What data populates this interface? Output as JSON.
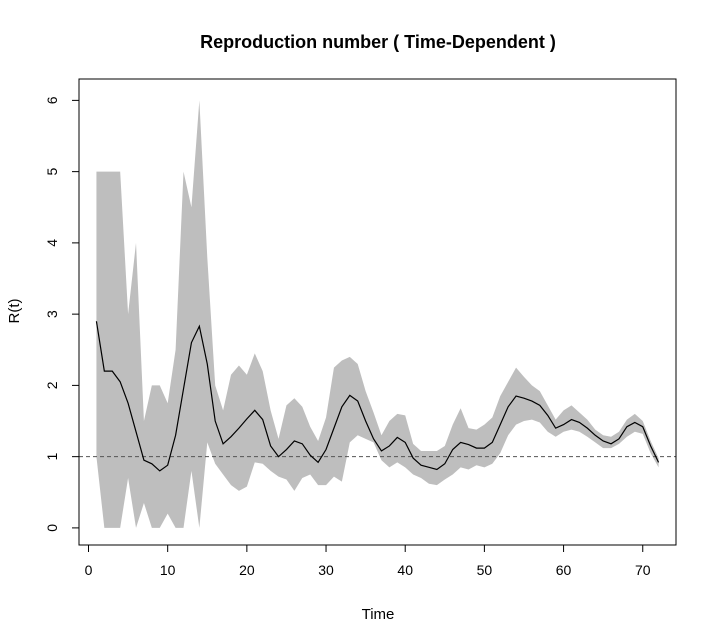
{
  "chart_data": {
    "type": "line",
    "title": "Reproduction number ( Time-Dependent )",
    "xlabel": "Time",
    "ylabel": "R(t)",
    "xlim": [
      -1.2,
      74.2
    ],
    "ylim": [
      -0.24,
      6.3
    ],
    "x_ticks": [
      0,
      10,
      20,
      30,
      40,
      50,
      60,
      70
    ],
    "y_ticks": [
      0,
      1,
      2,
      3,
      4,
      5,
      6
    ],
    "reference_line": {
      "y": 1,
      "style": "dashed",
      "color": "#555555"
    },
    "band_color": "#bebebe",
    "line_color": "#000000",
    "grid": false,
    "series": [
      {
        "x": [
          1,
          2,
          3,
          4,
          5,
          6,
          7,
          8,
          9,
          10,
          11,
          12,
          13,
          14,
          15,
          16,
          17,
          18,
          19,
          20,
          21,
          22,
          23,
          24,
          25,
          26,
          27,
          28,
          29,
          30,
          31,
          32,
          33,
          34,
          35,
          36,
          37,
          38,
          39,
          40,
          41,
          42,
          43,
          44,
          45,
          46,
          47,
          48,
          49,
          50,
          51,
          52,
          53,
          54,
          55,
          56,
          57,
          58,
          59,
          60,
          61,
          62,
          63,
          64,
          65,
          66,
          67,
          68,
          69,
          70,
          71,
          72
        ],
        "y": [
          2.9,
          2.2,
          2.2,
          2.05,
          1.75,
          1.35,
          0.95,
          0.9,
          0.8,
          0.88,
          1.3,
          1.95,
          2.6,
          2.83,
          2.3,
          1.5,
          1.18,
          1.28,
          1.4,
          1.53,
          1.65,
          1.52,
          1.15,
          1.0,
          1.1,
          1.22,
          1.18,
          1.02,
          0.92,
          1.1,
          1.4,
          1.7,
          1.86,
          1.78,
          1.5,
          1.25,
          1.08,
          1.15,
          1.27,
          1.2,
          0.98,
          0.88,
          0.85,
          0.82,
          0.9,
          1.1,
          1.2,
          1.17,
          1.12,
          1.12,
          1.2,
          1.45,
          1.7,
          1.85,
          1.82,
          1.78,
          1.72,
          1.58,
          1.4,
          1.45,
          1.52,
          1.48,
          1.4,
          1.3,
          1.22,
          1.18,
          1.25,
          1.42,
          1.48,
          1.42,
          1.15,
          0.92
        ],
        "lower": [
          1.0,
          0.0,
          0.0,
          0.0,
          0.7,
          0.0,
          0.35,
          0.0,
          0.0,
          0.2,
          0.0,
          0.0,
          0.8,
          0.0,
          1.2,
          0.9,
          0.75,
          0.6,
          0.52,
          0.58,
          0.92,
          0.9,
          0.8,
          0.72,
          0.68,
          0.52,
          0.7,
          0.75,
          0.6,
          0.6,
          0.72,
          0.65,
          1.2,
          1.3,
          1.25,
          1.2,
          0.95,
          0.85,
          0.92,
          0.85,
          0.75,
          0.7,
          0.62,
          0.6,
          0.68,
          0.75,
          0.85,
          0.82,
          0.88,
          0.85,
          0.9,
          1.05,
          1.3,
          1.45,
          1.5,
          1.52,
          1.48,
          1.35,
          1.28,
          1.35,
          1.38,
          1.35,
          1.28,
          1.2,
          1.12,
          1.12,
          1.18,
          1.28,
          1.35,
          1.32,
          1.05,
          0.85
        ],
        "upper": [
          5.0,
          5.0,
          5.0,
          5.0,
          3.0,
          4.0,
          1.5,
          2.0,
          2.0,
          1.75,
          2.5,
          5.0,
          4.5,
          6.0,
          3.8,
          2.0,
          1.65,
          2.15,
          2.28,
          2.15,
          2.45,
          2.2,
          1.65,
          1.25,
          1.72,
          1.82,
          1.7,
          1.42,
          1.22,
          1.55,
          2.25,
          2.35,
          2.4,
          2.3,
          1.92,
          1.62,
          1.3,
          1.5,
          1.6,
          1.58,
          1.18,
          1.08,
          1.08,
          1.08,
          1.15,
          1.45,
          1.68,
          1.4,
          1.38,
          1.45,
          1.55,
          1.85,
          2.05,
          2.25,
          2.12,
          2.0,
          1.92,
          1.72,
          1.52,
          1.65,
          1.72,
          1.62,
          1.52,
          1.38,
          1.3,
          1.28,
          1.35,
          1.52,
          1.6,
          1.5,
          1.22,
          0.98
        ]
      }
    ]
  }
}
